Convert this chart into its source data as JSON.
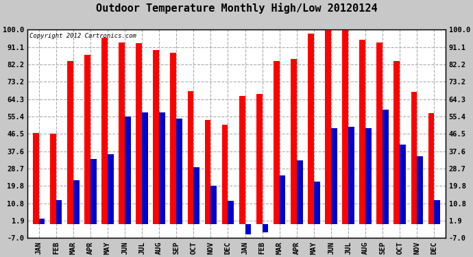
{
  "title": "Outdoor Temperature Monthly High/Low 20120124",
  "copyright": "Copyright 2012 Cartronics.com",
  "ylabel_ticks": [
    100.0,
    91.1,
    82.2,
    73.2,
    64.3,
    55.4,
    46.5,
    37.6,
    28.7,
    19.8,
    10.8,
    1.9,
    -7.0
  ],
  "months": [
    "JAN",
    "FEB",
    "MAR",
    "APR",
    "MAY",
    "JUN",
    "JUL",
    "AUG",
    "SEP",
    "OCT",
    "NOV",
    "DEC",
    "JAN",
    "FEB",
    "MAR",
    "APR",
    "MAY",
    "JUN",
    "JUL",
    "AUG",
    "SEP",
    "OCT",
    "NOV",
    "DEC"
  ],
  "highs": [
    47.0,
    46.5,
    84.0,
    87.0,
    96.0,
    93.5,
    93.0,
    89.5,
    88.0,
    68.5,
    53.5,
    51.0,
    66.0,
    67.0,
    84.0,
    85.0,
    98.0,
    100.0,
    102.0,
    95.0,
    93.5,
    84.0,
    68.0,
    57.0
  ],
  "lows": [
    3.0,
    12.5,
    22.5,
    33.5,
    36.0,
    55.5,
    57.5,
    57.5,
    54.5,
    29.5,
    20.0,
    12.0,
    -5.0,
    -4.0,
    25.0,
    33.0,
    22.0,
    49.5,
    50.0,
    49.5,
    59.0,
    41.0,
    35.0,
    12.5
  ],
  "high_color": "#ff0000",
  "low_color": "#0000cc",
  "bg_color": "#c8c8c8",
  "plot_bg_color": "#ffffff",
  "grid_color": "#aaaaaa",
  "title_fontsize": 11,
  "bar_width": 0.35,
  "ylim_min": -7.0,
  "ylim_max": 100.0
}
